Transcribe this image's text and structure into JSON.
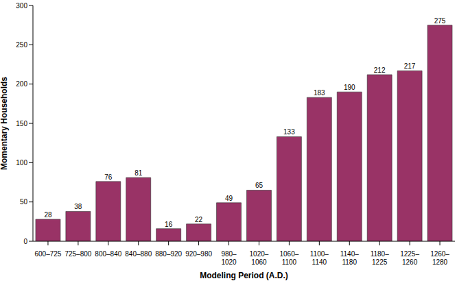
{
  "chart_data": {
    "type": "bar",
    "categories": [
      "600–725",
      "725–800",
      "800–840",
      "840–880",
      "880–920",
      "920–980",
      "980–1020",
      "1020–1060",
      "1060–1100",
      "1100–1140",
      "1140–1180",
      "1180–1225",
      "1225–1260",
      "1260–1280"
    ],
    "values": [
      28,
      38,
      76,
      81,
      16,
      22,
      49,
      65,
      133,
      183,
      190,
      212,
      217,
      275
    ],
    "color": "#993366",
    "ylim": [
      0,
      300
    ],
    "yticks": [
      0,
      50,
      100,
      150,
      200,
      250,
      300
    ],
    "grid": false,
    "data_labels": true,
    "x_label": "Modeling Period (A.D.)",
    "y_label": "Momentary Households"
  }
}
